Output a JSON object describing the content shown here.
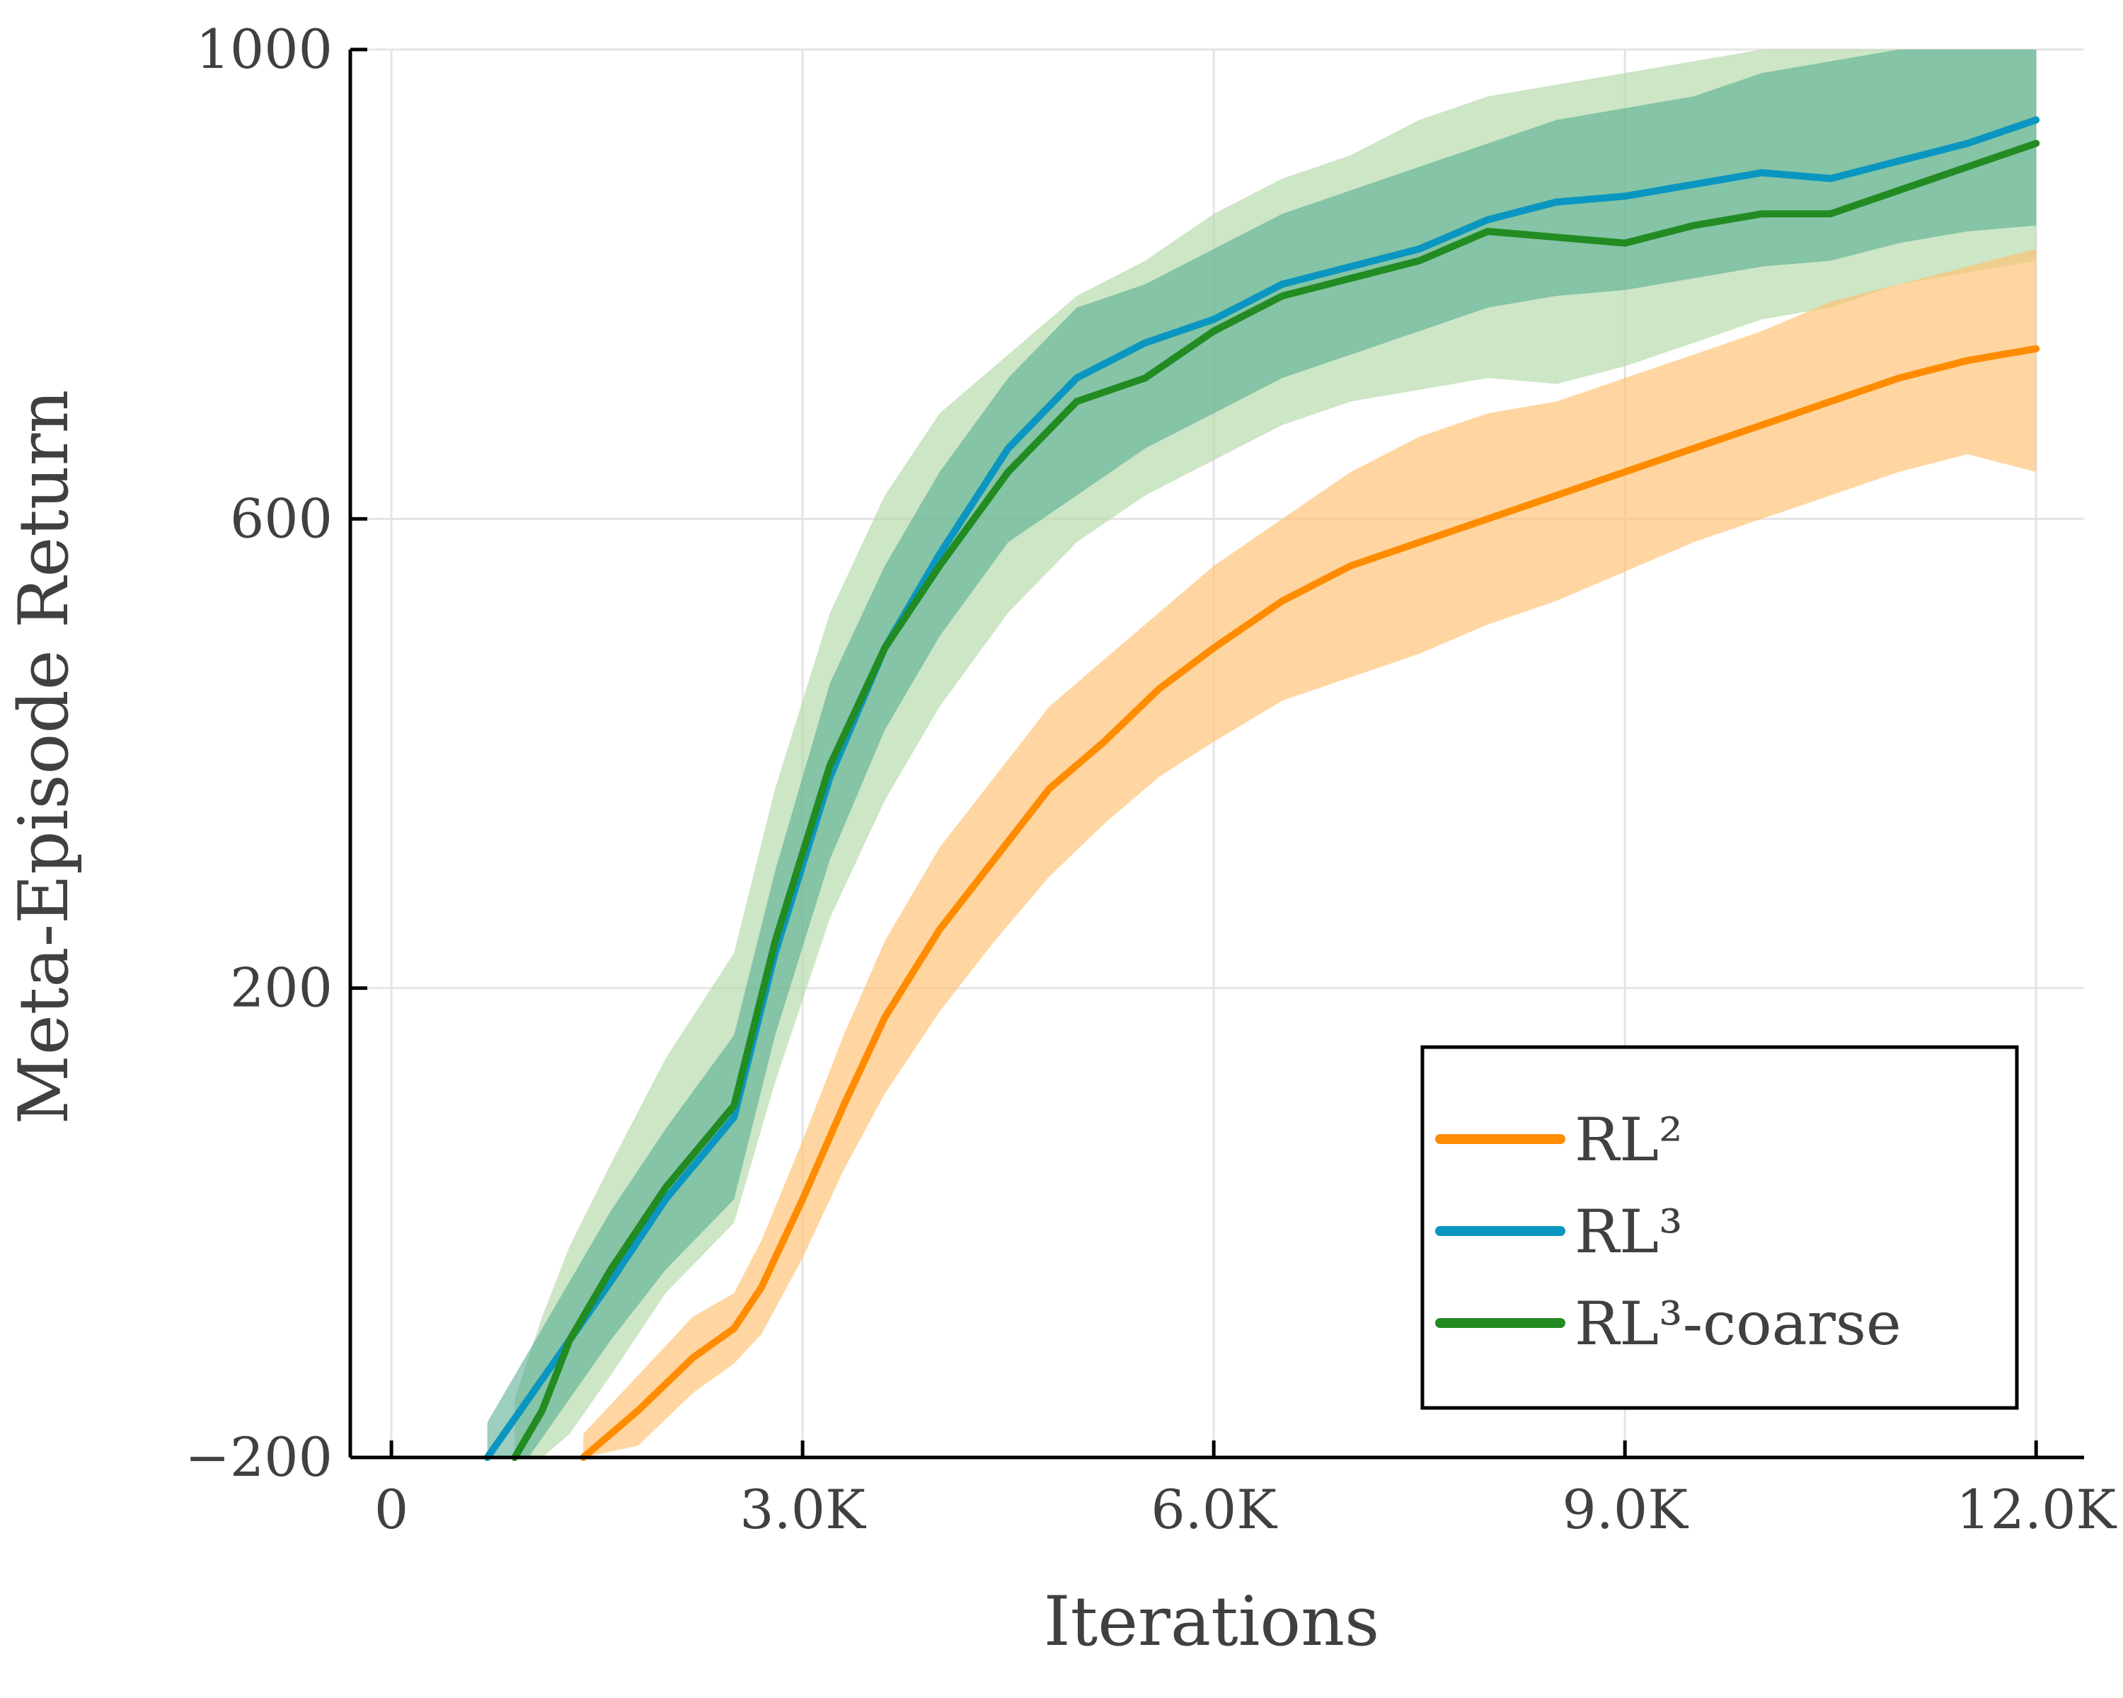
{
  "chart_data": {
    "type": "line",
    "title": "",
    "xlabel": "Iterations",
    "ylabel": "Meta-Episode Return",
    "xlim": [
      -300,
      12350
    ],
    "ylim": [
      -200,
      1000
    ],
    "x_ticks": [
      0,
      3000,
      6000,
      9000,
      12000
    ],
    "x_tick_labels": [
      "0",
      "3.0K",
      "6.0K",
      "9.0K",
      "12.0K"
    ],
    "y_ticks": [
      -200,
      200,
      600,
      1000
    ],
    "y_tick_labels": [
      "−200",
      "200",
      "600",
      "1000"
    ],
    "grid": true,
    "legend_position": "bottom-right",
    "series": [
      {
        "name": "RL²",
        "color": "#ff8c00",
        "band_color": "#ffc06e",
        "x": [
          1400,
          1800,
          2200,
          2500,
          2700,
          3000,
          3300,
          3600,
          4000,
          4400,
          4800,
          5200,
          5600,
          6000,
          6500,
          7000,
          7500,
          8000,
          8500,
          9000,
          9500,
          10000,
          10500,
          11000,
          11500,
          12000
        ],
        "mean": [
          -200,
          -160,
          -115,
          -90,
          -55,
          20,
          100,
          175,
          250,
          310,
          370,
          410,
          455,
          490,
          530,
          560,
          580,
          600,
          620,
          640,
          660,
          680,
          700,
          720,
          735,
          745
        ],
        "lower": [
          -200,
          -190,
          -145,
          -120,
          -95,
          -30,
          45,
          110,
          180,
          240,
          295,
          340,
          380,
          410,
          445,
          465,
          485,
          510,
          530,
          555,
          580,
          600,
          620,
          640,
          655,
          640
        ],
        "upper": [
          -180,
          -130,
          -80,
          -60,
          -15,
          70,
          160,
          240,
          320,
          380,
          440,
          480,
          520,
          560,
          600,
          640,
          670,
          690,
          700,
          720,
          740,
          760,
          785,
          800,
          815,
          830
        ]
      },
      {
        "name": "RL³",
        "color": "#0a96c0",
        "band_color": "#4aa88c",
        "x": [
          700,
          1000,
          1300,
          1600,
          2000,
          2500,
          2800,
          3200,
          3600,
          4000,
          4500,
          5000,
          5500,
          6000,
          6500,
          7000,
          7500,
          8000,
          8500,
          9000,
          9500,
          10000,
          10500,
          11000,
          11500,
          12000
        ],
        "mean": [
          -200,
          -150,
          -100,
          -50,
          20,
          90,
          230,
          380,
          490,
          570,
          660,
          720,
          750,
          770,
          800,
          815,
          830,
          855,
          870,
          875,
          885,
          895,
          890,
          905,
          920,
          940
        ],
        "lower": [
          -220,
          -200,
          -150,
          -100,
          -40,
          20,
          160,
          310,
          420,
          500,
          580,
          620,
          660,
          690,
          720,
          740,
          760,
          780,
          790,
          795,
          805,
          815,
          820,
          835,
          845,
          850
        ],
        "upper": [
          -170,
          -110,
          -50,
          10,
          80,
          160,
          300,
          460,
          560,
          640,
          720,
          780,
          800,
          830,
          860,
          880,
          900,
          920,
          940,
          950,
          960,
          980,
          990,
          1000,
          1010,
          1040
        ]
      },
      {
        "name": "RL³-coarse",
        "color": "#228b22",
        "band_color": "#b2d9a8",
        "x": [
          900,
          1100,
          1300,
          1600,
          2000,
          2500,
          2800,
          3200,
          3600,
          4000,
          4500,
          5000,
          5500,
          6000,
          6500,
          7000,
          7500,
          8000,
          8500,
          9000,
          9500,
          10000,
          10500,
          11000,
          11500,
          12000
        ],
        "mean": [
          -200,
          -160,
          -100,
          -40,
          30,
          100,
          240,
          390,
          490,
          560,
          640,
          700,
          720,
          760,
          790,
          805,
          820,
          845,
          840,
          835,
          850,
          860,
          860,
          880,
          900,
          920
        ],
        "lower": [
          -210,
          -200,
          -180,
          -130,
          -60,
          0,
          120,
          260,
          360,
          440,
          520,
          580,
          620,
          650,
          680,
          700,
          710,
          720,
          715,
          730,
          750,
          770,
          780,
          800,
          810,
          820
        ],
        "upper": [
          -150,
          -80,
          -20,
          50,
          140,
          230,
          370,
          520,
          620,
          690,
          740,
          790,
          820,
          860,
          890,
          910,
          940,
          960,
          970,
          980,
          990,
          1000,
          1010,
          1020,
          1030,
          1050
        ]
      }
    ]
  }
}
